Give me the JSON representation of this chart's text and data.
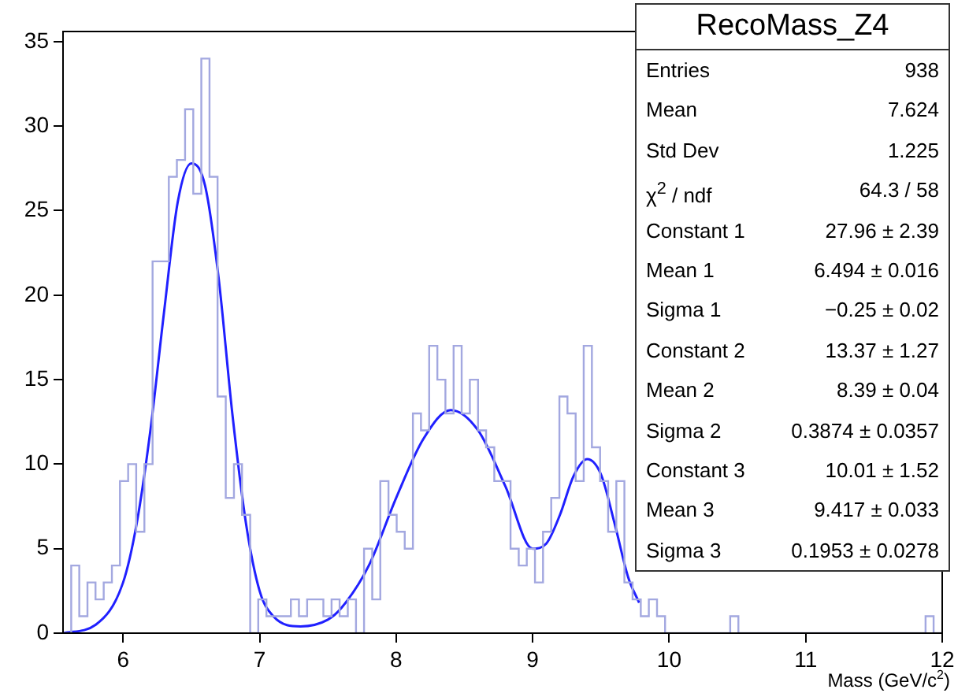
{
  "chart_data": {
    "type": "histogram",
    "title": "RecoMass_Z4",
    "xlabel": "Mass (GeV/c$^{2}$)",
    "bins": [
      5.56,
      5.62,
      5.679,
      5.739,
      5.798,
      5.858,
      5.918,
      5.977,
      6.037,
      6.096,
      6.156,
      6.216,
      6.275,
      6.335,
      6.394,
      6.454,
      6.514,
      6.573,
      6.633,
      6.692,
      6.752,
      6.812,
      6.871,
      6.931,
      6.99,
      7.05,
      7.11,
      7.169,
      7.229,
      7.288,
      7.348,
      7.408,
      7.467,
      7.527,
      7.586,
      7.646,
      7.706,
      7.765,
      7.825,
      7.884,
      7.944,
      8.004,
      8.063,
      8.123,
      8.182,
      8.242,
      8.302,
      8.361,
      8.421,
      8.48,
      8.54,
      8.6,
      8.659,
      8.719,
      8.778,
      8.838,
      8.898,
      8.957,
      9.017,
      9.076,
      9.136,
      9.196,
      9.255,
      9.315,
      9.374,
      9.434,
      9.494,
      9.553,
      9.613,
      9.672,
      9.732,
      9.792,
      9.851,
      9.911,
      9.97,
      10.03,
      10.09,
      10.149,
      10.209,
      10.268,
      10.328,
      10.388,
      10.447,
      10.507,
      10.566,
      10.626,
      10.686,
      10.745,
      10.805,
      10.864,
      10.924,
      10.984,
      11.043,
      11.103,
      11.162,
      11.222,
      11.282,
      11.341,
      11.401,
      11.46,
      11.52,
      11.58,
      11.639,
      11.699,
      11.758,
      11.818,
      11.878,
      11.937,
      12
    ],
    "series": [
      {
        "color": "#a3a8e0",
        "values": [
          0,
          4,
          1,
          3,
          2,
          3,
          4,
          9,
          10,
          6,
          10,
          22,
          22,
          27,
          28,
          31,
          26,
          34,
          27,
          14,
          8,
          10,
          7,
          0,
          2,
          1,
          1,
          1,
          2,
          1,
          2,
          2,
          1,
          2,
          1,
          2,
          0,
          5,
          2,
          9,
          7,
          6,
          5,
          13,
          12,
          17,
          15,
          13,
          17,
          13,
          15,
          12,
          11,
          9,
          9,
          5,
          4,
          5,
          3,
          6,
          8,
          14,
          13,
          9,
          17,
          11,
          9,
          6,
          9,
          3,
          2,
          1,
          2,
          1,
          0,
          0,
          0,
          0,
          0,
          0,
          0,
          0,
          1,
          0,
          0,
          0,
          0,
          0,
          0,
          0,
          0,
          0,
          0,
          0,
          0,
          0,
          0,
          0,
          0,
          0,
          0,
          0,
          0,
          0,
          0,
          0,
          1,
          0
        ]
      },
      {
        "type": "line",
        "color": "#2020ff",
        "x": [
          5.56,
          5.8,
          6.0,
          6.1,
          6.2,
          6.3,
          6.4,
          6.5,
          6.6,
          6.7,
          6.8,
          6.9,
          7.0,
          7.1,
          7.3,
          7.5,
          7.6,
          7.8,
          8.0,
          8.2,
          8.4,
          8.6,
          8.8,
          9.0,
          9.1,
          9.2,
          9.3,
          9.4,
          9.5,
          9.6,
          9.7,
          9.78
        ],
        "values": [
          0,
          0.5,
          3,
          6.5,
          12,
          19,
          25.5,
          27.8,
          26.5,
          21,
          13,
          6.5,
          2.5,
          1,
          0.4,
          0.8,
          1.5,
          4,
          8,
          11.5,
          13.2,
          12,
          8.7,
          5,
          5.3,
          7,
          9.3,
          10.3,
          9.4,
          6.5,
          3.3,
          1.8
        ]
      }
    ],
    "xlim": [
      5.56,
      12
    ],
    "xticks": [
      6,
      7,
      8,
      9,
      10,
      11,
      12
    ],
    "ylim": [
      0,
      35.6
    ],
    "yticks": [
      0,
      5,
      10,
      15,
      20,
      25,
      30,
      35
    ],
    "grid": false,
    "legend": false,
    "marker": "none",
    "annotations": [
      "Entries",
      "938",
      "Mean",
      "7.624",
      "Std Dev",
      "1.225",
      "χ$^{2}$ / ndf",
      "64.3 / 58",
      "Constant 1",
      "27.96 ± 2.39",
      "Mean 1",
      "6.494 ± 0.016",
      "Sigma 1",
      "−0.25 ± 0.02",
      "Constant 2",
      "13.37 ± 1.27",
      "Mean 2",
      "8.39 ± 0.04",
      "Sigma 2",
      "0.3874 ± 0.0357",
      "Constant 3",
      "10.01 ± 1.52",
      "Mean 3",
      "9.417 ± 0.033",
      "Sigma 3",
      "0.1953 ± 0.0278"
    ]
  }
}
